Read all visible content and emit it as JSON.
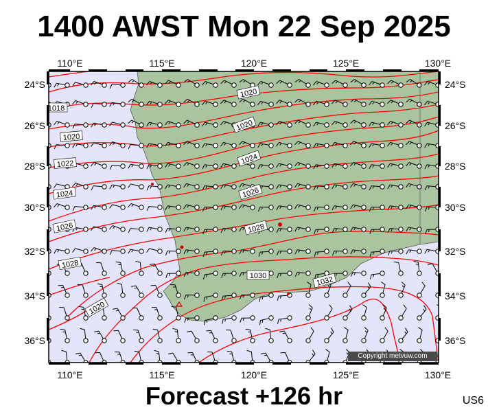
{
  "title": "1400 AWST Mon 22 Sep 2025",
  "subtitle": "Forecast +126 hr",
  "region_code": "US6",
  "copyright": "Copyright metvuw.com",
  "lon_labels": [
    "110°E",
    "115°E",
    "120°E",
    "125°E",
    "130°E"
  ],
  "lat_labels": [
    "24°S",
    "26°S",
    "28°S",
    "30°S",
    "32°S",
    "34°S",
    "36°S"
  ],
  "isobar_labels": [
    "1018",
    "1020",
    "1020",
    "1020",
    "1022",
    "1024",
    "1024",
    "1026",
    "1026",
    "1028",
    "1028",
    "1030",
    "1032",
    "1020"
  ],
  "colors": {
    "ocean": "#e4e4fa",
    "land": "#a9c49f",
    "isobar": "#ff0000",
    "wind": "#000000",
    "frame": "#000000"
  }
}
